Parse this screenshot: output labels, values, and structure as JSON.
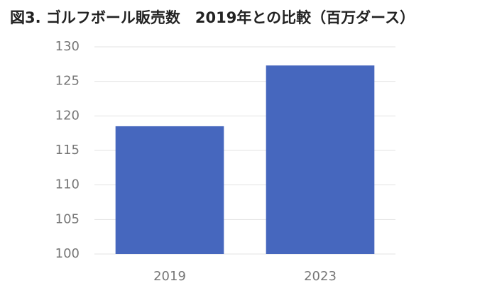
{
  "chart_data": {
    "type": "bar",
    "title": "図3. ゴルフボール販売数　2019年との比較（百万ダース）",
    "categories": [
      "2019",
      "2023"
    ],
    "values": [
      118.5,
      127.3
    ],
    "color": "#4667be",
    "ylim": [
      100,
      130
    ],
    "yticks": [
      100,
      105,
      110,
      115,
      120,
      125,
      130
    ],
    "grid": true
  }
}
